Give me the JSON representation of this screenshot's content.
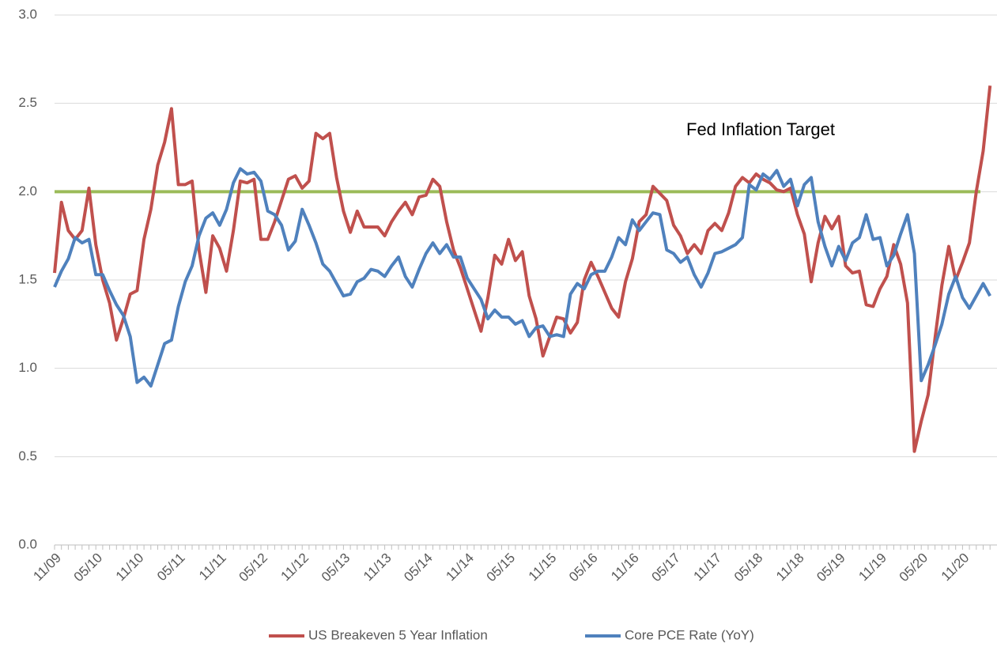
{
  "chart_data": {
    "type": "line",
    "categories": [
      "11/09",
      null,
      null,
      null,
      null,
      null,
      "05/10",
      null,
      null,
      null,
      null,
      null,
      "11/10",
      null,
      null,
      null,
      null,
      null,
      "05/11",
      null,
      null,
      null,
      null,
      null,
      "11/11",
      null,
      null,
      null,
      null,
      null,
      "05/12",
      null,
      null,
      null,
      null,
      null,
      "11/12",
      null,
      null,
      null,
      null,
      null,
      "05/13",
      null,
      null,
      null,
      null,
      null,
      "11/13",
      null,
      null,
      null,
      null,
      null,
      "05/14",
      null,
      null,
      null,
      null,
      null,
      "11/14",
      null,
      null,
      null,
      null,
      null,
      "05/15",
      null,
      null,
      null,
      null,
      null,
      "11/15",
      null,
      null,
      null,
      null,
      null,
      "05/16",
      null,
      null,
      null,
      null,
      null,
      "11/16",
      null,
      null,
      null,
      null,
      null,
      "05/17",
      null,
      null,
      null,
      null,
      null,
      "11/17",
      null,
      null,
      null,
      null,
      null,
      "05/18",
      null,
      null,
      null,
      null,
      null,
      "11/18",
      null,
      null,
      null,
      null,
      null,
      "05/19",
      null,
      null,
      null,
      null,
      null,
      "11/19",
      null,
      null,
      null,
      null,
      null,
      "05/20",
      null,
      null,
      null,
      null,
      null,
      "11/20",
      null,
      null,
      null,
      null
    ],
    "series": [
      {
        "name": "US Breakeven 5 Year Inflation",
        "color": "#c0504d",
        "values": [
          1.54,
          1.94,
          1.78,
          1.73,
          1.78,
          2.02,
          1.7,
          1.5,
          1.37,
          1.16,
          1.28,
          1.42,
          1.44,
          1.73,
          1.9,
          2.15,
          2.28,
          2.47,
          2.04,
          2.04,
          2.06,
          1.67,
          1.43,
          1.75,
          1.68,
          1.55,
          1.78,
          2.06,
          2.05,
          2.07,
          1.73,
          1.73,
          1.83,
          1.95,
          2.07,
          2.09,
          2.02,
          2.06,
          2.33,
          2.3,
          2.33,
          2.08,
          1.89,
          1.77,
          1.89,
          1.8,
          1.8,
          1.8,
          1.75,
          1.83,
          1.89,
          1.94,
          1.87,
          1.97,
          1.98,
          2.07,
          2.03,
          1.83,
          1.67,
          1.57,
          1.45,
          1.33,
          1.21,
          1.4,
          1.64,
          1.59,
          1.73,
          1.61,
          1.66,
          1.41,
          1.28,
          1.07,
          1.18,
          1.29,
          1.28,
          1.2,
          1.26,
          1.5,
          1.6,
          1.52,
          1.43,
          1.34,
          1.29,
          1.49,
          1.62,
          1.83,
          1.87,
          2.03,
          1.99,
          1.95,
          1.81,
          1.75,
          1.65,
          1.7,
          1.65,
          1.78,
          1.82,
          1.78,
          1.88,
          2.03,
          2.08,
          2.05,
          2.1,
          2.07,
          2.05,
          2.01,
          2.0,
          2.02,
          1.87,
          1.76,
          1.49,
          1.71,
          1.86,
          1.79,
          1.86,
          1.58,
          1.54,
          1.55,
          1.36,
          1.35,
          1.45,
          1.52,
          1.7,
          1.59,
          1.37,
          0.53,
          0.7,
          0.85,
          1.17,
          1.47,
          1.69,
          1.5,
          1.6,
          1.71,
          2.0,
          2.23,
          2.6
        ]
      },
      {
        "name": "Core PCE Rate (YoY)",
        "color": "#4f81bd",
        "values": [
          1.46,
          1.55,
          1.62,
          1.74,
          1.71,
          1.73,
          1.53,
          1.53,
          1.44,
          1.36,
          1.3,
          1.18,
          0.92,
          0.95,
          0.9,
          1.02,
          1.14,
          1.16,
          1.35,
          1.49,
          1.58,
          1.75,
          1.85,
          1.88,
          1.81,
          1.9,
          2.05,
          2.13,
          2.1,
          2.11,
          2.06,
          1.89,
          1.87,
          1.81,
          1.67,
          1.72,
          1.9,
          1.81,
          1.71,
          1.59,
          1.55,
          1.48,
          1.41,
          1.42,
          1.49,
          1.51,
          1.56,
          1.55,
          1.52,
          1.58,
          1.63,
          1.52,
          1.46,
          1.56,
          1.65,
          1.71,
          1.65,
          1.7,
          1.63,
          1.63,
          1.51,
          1.45,
          1.39,
          1.28,
          1.33,
          1.29,
          1.29,
          1.25,
          1.27,
          1.18,
          1.23,
          1.24,
          1.18,
          1.19,
          1.18,
          1.42,
          1.48,
          1.45,
          1.53,
          1.55,
          1.55,
          1.63,
          1.74,
          1.7,
          1.84,
          1.78,
          1.83,
          1.88,
          1.87,
          1.67,
          1.65,
          1.6,
          1.63,
          1.53,
          1.46,
          1.54,
          1.65,
          1.66,
          1.68,
          1.7,
          1.74,
          2.04,
          2.01,
          2.1,
          2.07,
          2.12,
          2.03,
          2.07,
          1.92,
          2.04,
          2.08,
          1.83,
          1.69,
          1.58,
          1.69,
          1.61,
          1.71,
          1.74,
          1.87,
          1.73,
          1.74,
          1.58,
          1.64,
          1.76,
          1.87,
          1.65,
          0.93,
          1.02,
          1.13,
          1.25,
          1.42,
          1.52,
          1.4,
          1.34,
          1.41,
          1.48,
          1.41
        ]
      }
    ],
    "reference_line": {
      "value": 2,
      "color": "#9bbb59",
      "label": "Fed Inflation Target"
    },
    "ylim": [
      0,
      3
    ],
    "yticks": [
      {
        "value": 0,
        "label": "0.0"
      },
      0.5,
      {
        "value": 1,
        "label": "1.0"
      },
      1.5,
      {
        "value": 2,
        "label": "2.0"
      },
      2.5,
      {
        "value": 3,
        "label": "3.0"
      }
    ],
    "grid": true,
    "legend": "bottom"
  }
}
